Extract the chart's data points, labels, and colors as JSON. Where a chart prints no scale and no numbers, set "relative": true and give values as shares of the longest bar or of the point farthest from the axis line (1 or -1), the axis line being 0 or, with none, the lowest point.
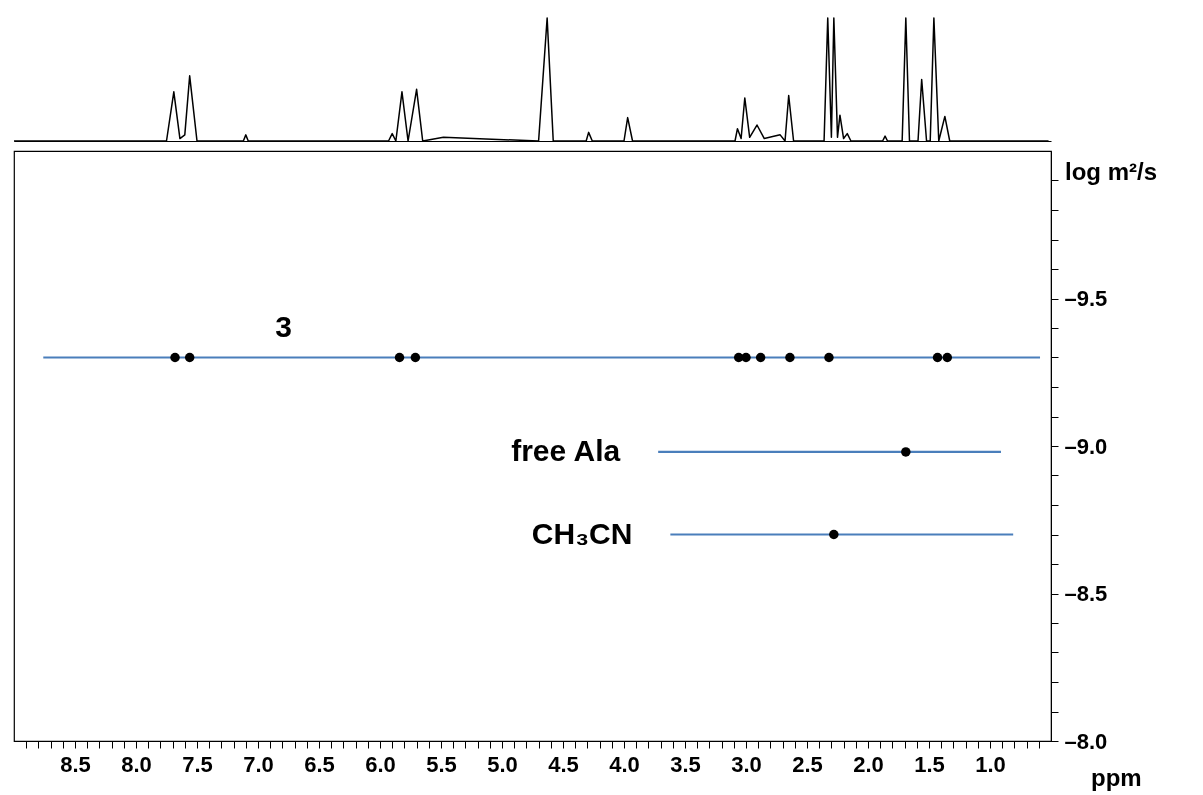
{
  "chart_data": [
    {
      "type": "line",
      "relative": true,
      "tick_labels": false,
      "xlim": [
        9.0,
        0.5
      ],
      "series": [
        {
          "color": "#000000",
          "x": [
            9.0,
            7.75,
            7.69,
            7.64,
            7.6,
            7.56,
            7.5,
            7.12,
            7.1,
            7.08,
            5.93,
            5.9,
            5.87,
            5.82,
            5.77,
            5.7,
            5.65,
            5.48,
            4.7,
            4.63,
            4.58,
            4.31,
            4.29,
            4.26,
            4.0,
            3.97,
            3.93,
            3.09,
            3.07,
            3.04,
            3.01,
            2.97,
            2.91,
            2.85,
            2.72,
            2.68,
            2.65,
            2.61,
            2.36,
            2.33,
            2.3,
            2.28,
            2.25,
            2.23,
            2.2,
            2.17,
            2.14,
            1.88,
            1.86,
            1.84,
            1.72,
            1.69,
            1.66,
            1.59,
            1.56,
            1.52,
            1.49,
            1.46,
            1.42,
            1.37,
            1.33,
            0.52
          ],
          "values": [
            0,
            0,
            0.4,
            0.02,
            0.05,
            0.53,
            0,
            0,
            0.05,
            0,
            0,
            0.06,
            0,
            0.4,
            0,
            0.42,
            0,
            0.03,
            0,
            1.0,
            0,
            0,
            0.07,
            0,
            0,
            0.19,
            0,
            0,
            0.1,
            0.02,
            0.35,
            0.03,
            0.13,
            0.02,
            0.05,
            0,
            0.37,
            0,
            0,
            1.0,
            0.03,
            1.0,
            0.03,
            0.21,
            0.02,
            0.06,
            0,
            0,
            0.04,
            0,
            0,
            1.0,
            0,
            0,
            0.5,
            0,
            0,
            1.0,
            0,
            0.2,
            0,
            0
          ]
        }
      ]
    },
    {
      "type": "scatter",
      "xlabel": "ppm",
      "ylabel": "log m²/s",
      "xlim": [
        9.0,
        0.5
      ],
      "ylim": [
        -8.0,
        -10.0
      ],
      "xticks": [
        {
          "value": 8.9,
          "label": null
        },
        {
          "value": 8.8,
          "label": null
        },
        {
          "value": 8.7,
          "label": null
        },
        {
          "value": 8.6,
          "label": null
        },
        8.5,
        {
          "value": 8.4,
          "label": null
        },
        {
          "value": 8.3,
          "label": null
        },
        {
          "value": 8.2,
          "label": null
        },
        {
          "value": 8.1,
          "label": null
        },
        {
          "value": 8,
          "label": "8.0"
        },
        {
          "value": 7.9,
          "label": null
        },
        {
          "value": 7.8,
          "label": null
        },
        {
          "value": 7.7,
          "label": null
        },
        {
          "value": 7.6,
          "label": null
        },
        7.5,
        {
          "value": 7.4,
          "label": null
        },
        {
          "value": 7.3,
          "label": null
        },
        {
          "value": 7.2,
          "label": null
        },
        {
          "value": 7.1,
          "label": null
        },
        {
          "value": 7,
          "label": "7.0"
        },
        {
          "value": 6.9,
          "label": null
        },
        {
          "value": 6.8,
          "label": null
        },
        {
          "value": 6.7,
          "label": null
        },
        {
          "value": 6.6,
          "label": null
        },
        6.5,
        {
          "value": 6.4,
          "label": null
        },
        {
          "value": 6.3,
          "label": null
        },
        {
          "value": 6.2,
          "label": null
        },
        {
          "value": 6.1,
          "label": null
        },
        {
          "value": 6,
          "label": "6.0"
        },
        {
          "value": 5.9,
          "label": null
        },
        {
          "value": 5.8,
          "label": null
        },
        {
          "value": 5.7,
          "label": null
        },
        {
          "value": 5.6,
          "label": null
        },
        5.5,
        {
          "value": 5.4,
          "label": null
        },
        {
          "value": 5.3,
          "label": null
        },
        {
          "value": 5.2,
          "label": null
        },
        {
          "value": 5.1,
          "label": null
        },
        {
          "value": 5,
          "label": "5.0"
        },
        {
          "value": 4.9,
          "label": null
        },
        {
          "value": 4.8,
          "label": null
        },
        {
          "value": 4.7,
          "label": null
        },
        {
          "value": 4.6,
          "label": null
        },
        4.5,
        {
          "value": 4.4,
          "label": null
        },
        {
          "value": 4.3,
          "label": null
        },
        {
          "value": 4.2,
          "label": null
        },
        {
          "value": 4.1,
          "label": null
        },
        {
          "value": 4,
          "label": "4.0"
        },
        {
          "value": 3.9,
          "label": null
        },
        {
          "value": 3.8,
          "label": null
        },
        {
          "value": 3.7,
          "label": null
        },
        {
          "value": 3.6,
          "label": null
        },
        3.5,
        {
          "value": 3.4,
          "label": null
        },
        {
          "value": 3.3,
          "label": null
        },
        {
          "value": 3.2,
          "label": null
        },
        {
          "value": 3.1,
          "label": null
        },
        {
          "value": 3,
          "label": "3.0"
        },
        {
          "value": 2.9,
          "label": null
        },
        {
          "value": 2.8,
          "label": null
        },
        {
          "value": 2.7,
          "label": null
        },
        {
          "value": 2.6,
          "label": null
        },
        2.5,
        {
          "value": 2.4,
          "label": null
        },
        {
          "value": 2.3,
          "label": null
        },
        {
          "value": 2.2,
          "label": null
        },
        {
          "value": 2.1,
          "label": null
        },
        {
          "value": 2,
          "label": "2.0"
        },
        {
          "value": 1.9,
          "label": null
        },
        {
          "value": 1.8,
          "label": null
        },
        {
          "value": 1.7,
          "label": null
        },
        {
          "value": 1.6,
          "label": null
        },
        1.5,
        {
          "value": 1.4,
          "label": null
        },
        {
          "value": 1.3,
          "label": null
        },
        {
          "value": 1.2,
          "label": null
        },
        {
          "value": 1.1,
          "label": null
        },
        {
          "value": 1,
          "label": "1.0"
        },
        {
          "value": 0.9,
          "label": null
        },
        {
          "value": 0.8,
          "label": null
        },
        {
          "value": 0.7,
          "label": null
        },
        {
          "value": 0.6,
          "label": null
        }
      ],
      "yticks": [
        {
          "value": -9.9,
          "label": null
        },
        {
          "value": -9.8,
          "label": null
        },
        {
          "value": -9.7,
          "label": null
        },
        {
          "value": -9.6,
          "label": null
        },
        {
          "value": -9.5,
          "label": "–9.5"
        },
        {
          "value": -9.4,
          "label": null
        },
        {
          "value": -9.3,
          "label": null
        },
        {
          "value": -9.2,
          "label": null
        },
        {
          "value": -9.1,
          "label": null
        },
        {
          "value": -9,
          "label": "–9.0"
        },
        {
          "value": -8.9,
          "label": null
        },
        {
          "value": -8.8,
          "label": null
        },
        {
          "value": -8.7,
          "label": null
        },
        {
          "value": -8.6,
          "label": null
        },
        {
          "value": -8.5,
          "label": "–8.5"
        },
        {
          "value": -8.4,
          "label": null
        },
        {
          "value": -8.3,
          "label": null
        },
        {
          "value": -8.2,
          "label": null
        },
        {
          "value": -8.1,
          "label": null
        },
        {
          "value": -8,
          "label": "–8.0"
        }
      ],
      "series": [
        {
          "type": "line",
          "color": "#4a7ebb",
          "x": [
            8.76,
            0.59
          ],
          "values": [
            -9.3,
            -9.3
          ]
        },
        {
          "type": "line",
          "color": "#4a7ebb",
          "x": [
            3.72,
            0.91
          ],
          "values": [
            -8.98,
            -8.98
          ]
        },
        {
          "type": "line",
          "color": "#4a7ebb",
          "x": [
            3.62,
            0.81
          ],
          "values": [
            -8.7,
            -8.7
          ]
        },
        {
          "marker": "circle",
          "color": "#000000",
          "x": [
            7.68,
            7.56,
            5.84,
            5.71,
            3.06,
            3.0,
            2.88,
            2.64,
            2.32,
            1.43,
            1.35,
            1.69,
            2.28
          ],
          "values": [
            -9.3,
            -9.3,
            -9.3,
            -9.3,
            -9.3,
            -9.3,
            -9.3,
            -9.3,
            -9.3,
            -9.3,
            -9.3,
            -8.98,
            -8.7
          ]
        }
      ],
      "annotations": [
        {
          "text": "3",
          "x": 7.56,
          "y": -9.3
        },
        {
          "text": "free Ala",
          "x": 3.72,
          "y": -8.98
        },
        {
          "text": "CH₃CN",
          "x": 3.62,
          "y": -8.7
        }
      ]
    }
  ]
}
